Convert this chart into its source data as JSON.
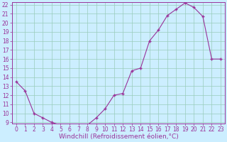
{
  "x": [
    0,
    1,
    2,
    3,
    4,
    5,
    6,
    7,
    8,
    9,
    10,
    11,
    12,
    13,
    14,
    15,
    16,
    17,
    18,
    19,
    20,
    21,
    22,
    23
  ],
  "y": [
    13.5,
    12.5,
    10.0,
    9.5,
    9.0,
    8.7,
    8.7,
    8.7,
    8.7,
    9.5,
    10.5,
    12.0,
    12.2,
    14.7,
    15.0,
    18.0,
    19.2,
    20.8,
    21.5,
    22.2,
    21.7,
    20.7,
    16.0,
    16.0
  ],
  "ylim_min": 9,
  "ylim_max": 22,
  "xlim_min": -0.5,
  "xlim_max": 23.5,
  "yticks": [
    9,
    10,
    11,
    12,
    13,
    14,
    15,
    16,
    17,
    18,
    19,
    20,
    21,
    22
  ],
  "xticks": [
    0,
    1,
    2,
    3,
    4,
    5,
    6,
    7,
    8,
    9,
    10,
    11,
    12,
    13,
    14,
    15,
    16,
    17,
    18,
    19,
    20,
    21,
    22,
    23
  ],
  "xlabel": "Windchill (Refroidissement éolien,°C)",
  "line_color": "#993399",
  "marker": "+",
  "bg_color": "#cceeff",
  "grid_color": "#99ccbb",
  "tick_color": "#993399",
  "label_color": "#993399",
  "tick_fontsize": 5.5,
  "xlabel_fontsize": 6.5,
  "marker_size": 3,
  "linewidth": 0.8
}
